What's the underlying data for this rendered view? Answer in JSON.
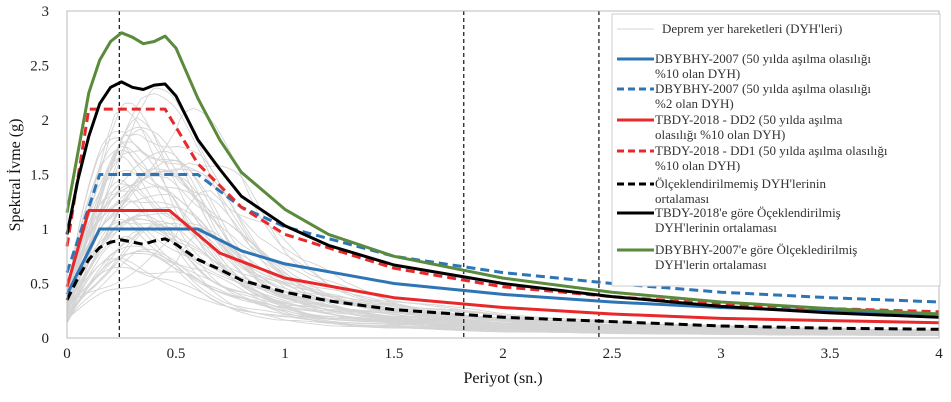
{
  "chart_data": {
    "type": "line",
    "xlabel": "Periyot (sn.)",
    "ylabel": "Spektral İvme (g)",
    "xlim": [
      0,
      4
    ],
    "ylim": [
      0,
      3
    ],
    "xticks": [
      "0",
      "0.5",
      "1",
      "1.5",
      "2",
      "2.5",
      "3",
      "3.5",
      "4"
    ],
    "yticks": [
      "0",
      "0.5",
      "1",
      "1.5",
      "2",
      "2.5",
      "3"
    ],
    "grid": false,
    "legend_position": "right",
    "vertical_lines": [
      0.24,
      1.82,
      2.44
    ],
    "series": [
      {
        "name": "Deprem yer hareketleri (DYH'leri)",
        "color": "#d4d4d4",
        "style": "solid",
        "x": [
          0,
          0.05,
          0.1,
          0.15,
          0.2,
          0.25,
          0.3,
          0.35,
          0.4,
          0.5,
          0.6,
          0.7,
          0.8,
          1.0,
          1.2,
          1.5,
          2.0,
          2.5,
          3.0,
          3.5,
          4.0
        ],
        "values": [
          0.42,
          0.95,
          1.35,
          1.7,
          1.95,
          2.1,
          2.05,
          1.95,
          1.85,
          1.6,
          1.25,
          0.95,
          0.75,
          0.5,
          0.38,
          0.28,
          0.18,
          0.13,
          0.1,
          0.08,
          0.07
        ]
      },
      {
        "name": "DBYBHY-2007 (50 yılda aşılma olasılığı %10 olan DYH)",
        "color": "#2e75b6",
        "style": "solid",
        "x": [
          0,
          0.15,
          0.6,
          0.8,
          1.0,
          1.5,
          2.0,
          2.5,
          3.0,
          3.5,
          4.0
        ],
        "values": [
          0.4,
          1.0,
          1.0,
          0.8,
          0.68,
          0.5,
          0.4,
          0.33,
          0.28,
          0.245,
          0.22
        ]
      },
      {
        "name": "DBYBHY-2007 (50 yılda aşılma olasılığı %2 olan DYH)",
        "color": "#2e75b6",
        "style": "dashed",
        "x": [
          0,
          0.15,
          0.6,
          0.8,
          1.0,
          1.5,
          2.0,
          2.5,
          3.0,
          3.5,
          4.0
        ],
        "values": [
          0.6,
          1.5,
          1.5,
          1.2,
          1.02,
          0.75,
          0.6,
          0.5,
          0.42,
          0.37,
          0.33
        ]
      },
      {
        "name": "TBDY-2018 - DD2 (50 yılda aşılma olasılığı %10 olan DYH)",
        "color": "#e8292b",
        "style": "solid",
        "x": [
          0,
          0.1,
          0.47,
          0.7,
          1.0,
          1.5,
          2.0,
          2.5,
          3.0,
          3.5,
          4.0
        ],
        "values": [
          0.47,
          1.17,
          1.17,
          0.78,
          0.55,
          0.37,
          0.28,
          0.22,
          0.18,
          0.16,
          0.14
        ]
      },
      {
        "name": "TBDY-2018 - DD1 (50 yılda aşılma olasılığı %10 olan DYH)",
        "color": "#e8292b",
        "style": "dashed",
        "x": [
          0,
          0.1,
          0.45,
          0.6,
          0.8,
          1.0,
          1.5,
          2.0,
          2.5,
          3.0,
          3.5,
          4.0
        ],
        "values": [
          0.84,
          2.1,
          2.1,
          1.6,
          1.2,
          0.95,
          0.64,
          0.47,
          0.38,
          0.31,
          0.27,
          0.24
        ]
      },
      {
        "name": "Ölçeklendirilmemiş DYH'lerinin ortalaması",
        "color": "#000000",
        "style": "dashed",
        "x": [
          0,
          0.05,
          0.1,
          0.15,
          0.2,
          0.25,
          0.3,
          0.35,
          0.4,
          0.45,
          0.5,
          0.6,
          0.7,
          0.8,
          1.0,
          1.2,
          1.5,
          2.0,
          2.5,
          3.0,
          3.5,
          4.0
        ],
        "values": [
          0.35,
          0.55,
          0.72,
          0.83,
          0.88,
          0.9,
          0.88,
          0.86,
          0.89,
          0.91,
          0.86,
          0.72,
          0.63,
          0.53,
          0.42,
          0.34,
          0.26,
          0.19,
          0.15,
          0.11,
          0.09,
          0.08
        ]
      },
      {
        "name": "TBDY-2018'e göre Öçeklendirilmiş DYH'lerinin ortalaması",
        "color": "#000000",
        "style": "solid",
        "x": [
          0,
          0.05,
          0.1,
          0.15,
          0.2,
          0.25,
          0.3,
          0.35,
          0.4,
          0.45,
          0.5,
          0.6,
          0.7,
          0.8,
          1.0,
          1.2,
          1.5,
          2.0,
          2.5,
          3.0,
          3.5,
          4.0
        ],
        "values": [
          0.95,
          1.45,
          1.85,
          2.15,
          2.3,
          2.35,
          2.3,
          2.28,
          2.32,
          2.33,
          2.22,
          1.82,
          1.55,
          1.3,
          1.03,
          0.85,
          0.67,
          0.5,
          0.38,
          0.29,
          0.23,
          0.19
        ]
      },
      {
        "name": "DBYBHY-2007'e göre Ölçekledirilmiş DYH'lerin ortalaması",
        "color": "#5a8a3c",
        "style": "solid",
        "x": [
          0,
          0.05,
          0.1,
          0.15,
          0.2,
          0.25,
          0.3,
          0.35,
          0.4,
          0.45,
          0.5,
          0.6,
          0.7,
          0.8,
          1.0,
          1.2,
          1.5,
          2.0,
          2.5,
          3.0,
          3.5,
          4.0
        ],
        "values": [
          1.15,
          1.7,
          2.25,
          2.55,
          2.72,
          2.8,
          2.76,
          2.7,
          2.72,
          2.77,
          2.66,
          2.2,
          1.82,
          1.52,
          1.18,
          0.95,
          0.75,
          0.55,
          0.42,
          0.33,
          0.27,
          0.22
        ]
      }
    ]
  }
}
